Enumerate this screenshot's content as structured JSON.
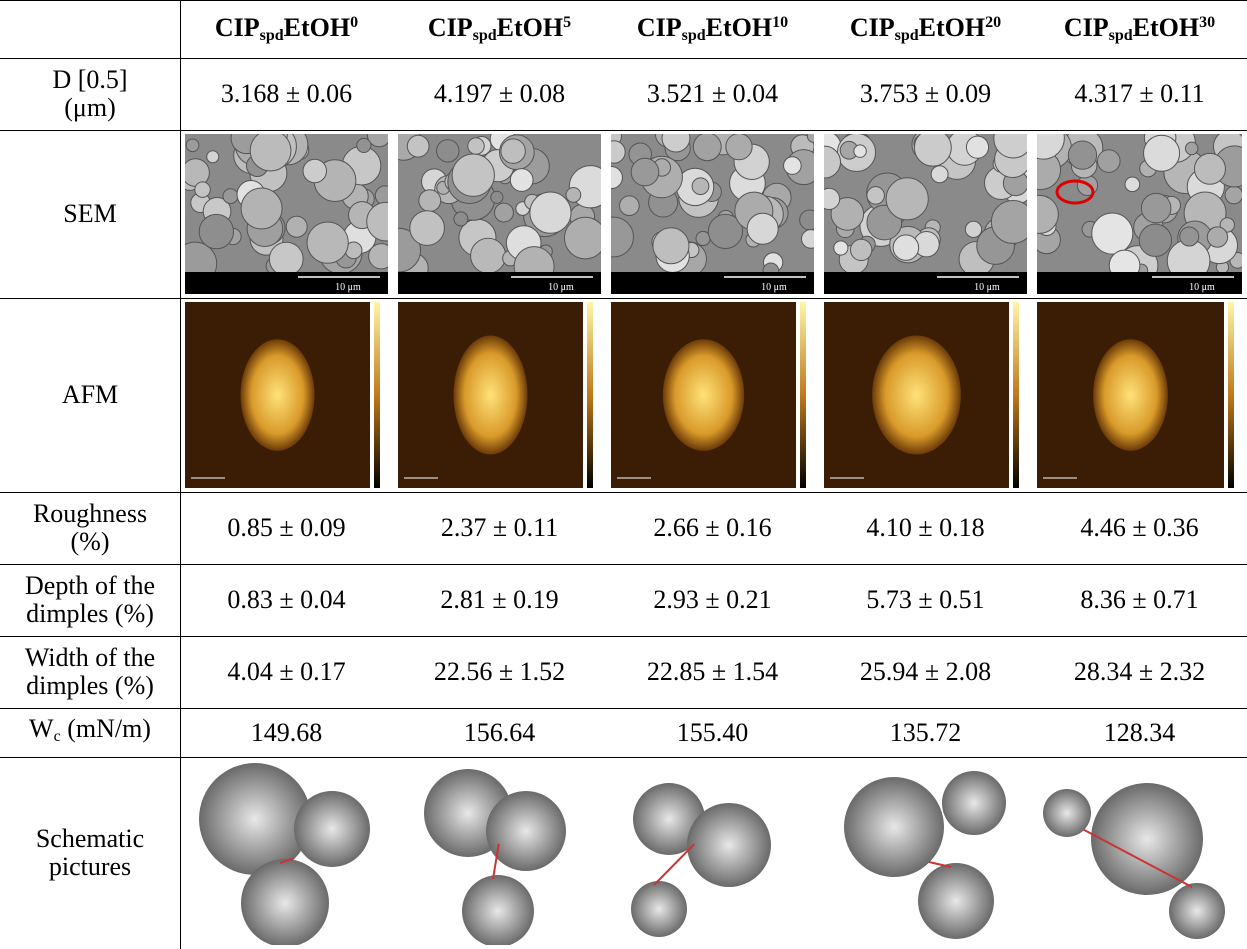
{
  "table": {
    "header": [
      {
        "base": "CIP",
        "sub": "spd",
        "mid": "EtOH",
        "sup": "0"
      },
      {
        "base": "CIP",
        "sub": "spd",
        "mid": "EtOH",
        "sup": "5"
      },
      {
        "base": "CIP",
        "sub": "spd",
        "mid": "EtOH",
        "sup": "10"
      },
      {
        "base": "CIP",
        "sub": "spd",
        "mid": "EtOH",
        "sup": "20"
      },
      {
        "base": "CIP",
        "sub": "spd",
        "mid": "EtOH",
        "sup": "30"
      }
    ],
    "rows": [
      {
        "label": [
          "D [0.5]",
          "(μm)"
        ],
        "cells": [
          "3.168 ± 0.06",
          "4.197 ± 0.08",
          "3.521 ± 0.04",
          "3.753 ± 0.09",
          "4.317 ± 0.11"
        ]
      },
      {
        "label": [
          "SEM"
        ],
        "scale_bars": [
          "10 μm",
          "10 μm",
          "10 μm",
          "10 μm",
          "10 μm"
        ]
      },
      {
        "label": [
          "AFM"
        ]
      },
      {
        "label": [
          "Roughness",
          "(%)"
        ],
        "cells": [
          "0.85 ± 0.09",
          "2.37 ± 0.11",
          "2.66 ± 0.16",
          "4.10 ± 0.18",
          "4.46 ± 0.36"
        ]
      },
      {
        "label": [
          "Depth of the",
          "dimples (%)"
        ],
        "cells": [
          "0.83 ± 0.04",
          "2.81 ± 0.19",
          "2.93 ± 0.21",
          "5.73 ± 0.51",
          "8.36 ± 0.71"
        ]
      },
      {
        "label": [
          "Width of the",
          "dimples (%)"
        ],
        "cells": [
          "4.04 ± 0.17",
          "22.56 ± 1.52",
          "22.85 ± 1.54",
          "25.94 ± 2.08",
          "28.34 ± 2.32"
        ]
      },
      {
        "label_parts": {
          "base": "W",
          "sub": "c",
          "rest": " (mN/m)"
        },
        "cells": [
          "149.68",
          "156.64",
          "155.40",
          "135.72",
          "128.34"
        ]
      },
      {
        "label": [
          "Schematic",
          "pictures"
        ]
      }
    ]
  }
}
